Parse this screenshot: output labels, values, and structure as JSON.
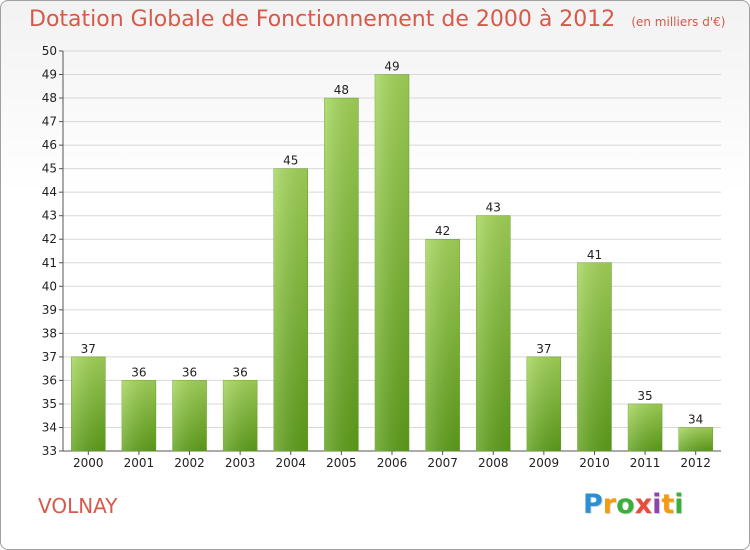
{
  "title": "Dotation Globale de Fonctionnement de 2000 à 2012",
  "unit": "(en milliers d'€)",
  "city": "VOLNAY",
  "logo": [
    "P",
    "r",
    "o",
    "x",
    "i",
    "t",
    "i"
  ],
  "colors": {
    "title": "#d65a4a",
    "bar_top": "#a4d65a",
    "bar_bottom": "#5fa01a",
    "grid": "#d8d8d8"
  },
  "chart_data": {
    "type": "bar",
    "title": "Dotation Globale de Fonctionnement de 2000 à 2012",
    "categories": [
      "2000",
      "2001",
      "2002",
      "2003",
      "2004",
      "2005",
      "2006",
      "2007",
      "2008",
      "2009",
      "2010",
      "2011",
      "2012"
    ],
    "values": [
      37,
      36,
      36,
      36,
      45,
      48,
      49,
      42,
      43,
      37,
      41,
      35,
      34
    ],
    "ylim": [
      33,
      50
    ],
    "yticks": [
      33,
      34,
      35,
      36,
      37,
      38,
      39,
      40,
      41,
      42,
      43,
      44,
      45,
      46,
      47,
      48,
      49,
      50
    ],
    "grid": true,
    "xlabel": "",
    "ylabel": ""
  }
}
